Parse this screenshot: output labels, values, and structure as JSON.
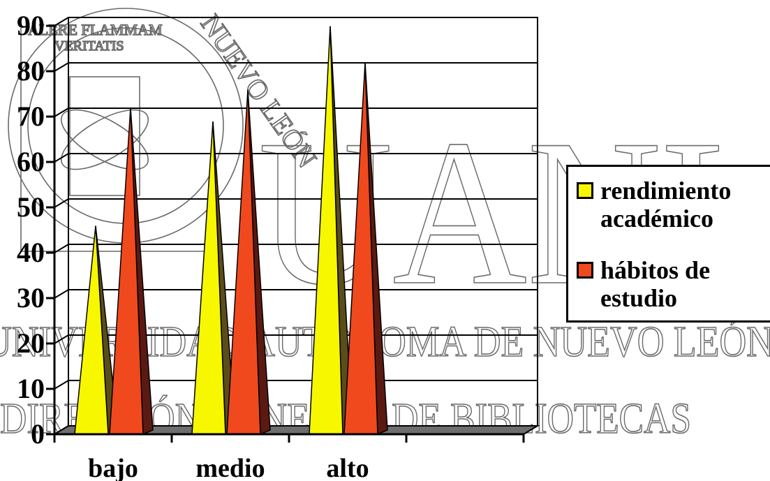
{
  "chart_data": {
    "type": "bar",
    "shape": "pyramid",
    "categories": [
      "bajo",
      "medio",
      "alto"
    ],
    "series": [
      {
        "name": "rendimiento académico",
        "values": [
          45,
          68,
          89
        ]
      },
      {
        "name": "hábitos de estudio",
        "values": [
          71,
          75,
          81
        ]
      }
    ],
    "ylim": [
      0,
      90
    ],
    "yticks": [
      0,
      10,
      20,
      30,
      40,
      50,
      60,
      70,
      80,
      90
    ],
    "grid": true,
    "legend_position": "right"
  },
  "colors": {
    "series_fill": [
      "#f7f700",
      "#f0491e"
    ],
    "series_shadow": [
      "#5b4d1a",
      "#5a1a12"
    ],
    "floor": "#6e6e6e"
  },
  "watermark": {
    "motto_line1": "ALERE FLAMMAM",
    "motto_line2": "VERITATIS",
    "seal_arc": "NUEVO LEÓN",
    "logo": "UANL",
    "line1": "UNIVERSIDAD AUTÓNOMA DE NUEVO LEÓN",
    "line2": "DIRECCIÓN GENERAL DE BIBLIOTECAS"
  }
}
